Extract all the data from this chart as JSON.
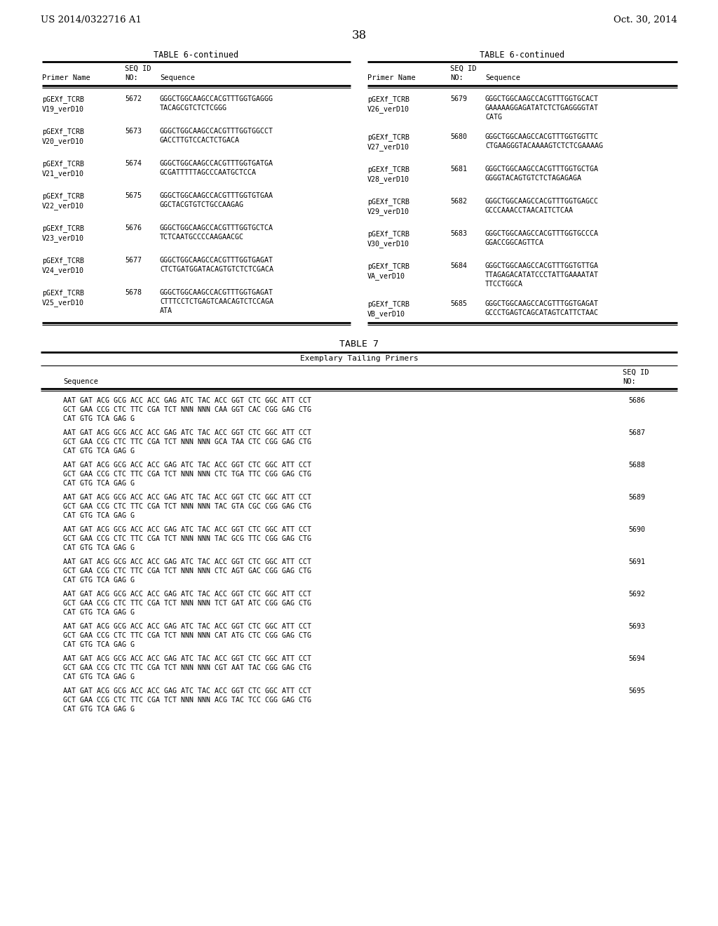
{
  "header_left": "US 2014/0322716 A1",
  "header_right": "Oct. 30, 2014",
  "page_number": "38",
  "bg_color": "#ffffff",
  "text_color": "#000000",
  "table6_title": "TABLE 6-continued",
  "table6_left_rows": [
    {
      "name": "pGEXf_TCRB\nV19_verD10",
      "seqid": "5672",
      "seq": "GGGCTGGCAAGCCACGTTTGGTGAGGG\nTACAGCGTCTCTCGGG"
    },
    {
      "name": "pGEXf_TCRB\nV20_verD10",
      "seqid": "5673",
      "seq": "GGGCTGGCAAGCCACGTTTGGTGGCCT\nGACCTTGTCCACTCTGACA"
    },
    {
      "name": "pGEXf_TCRB\nV21_verD10",
      "seqid": "5674",
      "seq": "GGGCTGGCAAGCCACGTTTGGTGATGA\nGCGATTTTTAGCCCAATGCTCCA"
    },
    {
      "name": "pGEXf_TCRB\nV22_verD10",
      "seqid": "5675",
      "seq": "GGGCTGGCAAGCCACGTTTGGTGTGAA\nGGCTACGTGTCTGCCAAGAG"
    },
    {
      "name": "pGEXf_TCRB\nV23_verD10",
      "seqid": "5676",
      "seq": "GGGCTGGCAAGCCACGTTTGGTGCTCA\nTCTCAATGCCCCAAGAACGC"
    },
    {
      "name": "pGEXf_TCRB\nV24_verD10",
      "seqid": "5677",
      "seq": "GGGCTGGCAAGCCACGTTTGGTGAGAT\nCTCTGATGGATACAGTGTCTCTCGACA"
    },
    {
      "name": "pGEXf_TCRB\nV25_verD10",
      "seqid": "5678",
      "seq": "GGGCTGGCAAGCCACGTTTGGTGAGAT\nCTTTCCTCTGAGTCAACAGTCTCCAGA\nATA"
    }
  ],
  "table6_right_rows": [
    {
      "name": "pGEXf_TCRB\nV26_verD10",
      "seqid": "5679",
      "seq": "GGGCTGGCAAGCCACGTTTGGTGCACT\nGAAAAAGGAGATATCTCTGAGGGGTAT\nCATG"
    },
    {
      "name": "pGEXf_TCRB\nV27_verD10",
      "seqid": "5680",
      "seq": "GGGCTGGCAAGCCACGTTTGGTGGTTC\nCTGAAGGGTACAAAAGTCTCTCGAAAAG"
    },
    {
      "name": "pGEXf_TCRB\nV28_verD10",
      "seqid": "5681",
      "seq": "GGGCTGGCAAGCCACGTTTGGTGCTGA\nGGGGTACAGTGTCTCTAGAGAGA"
    },
    {
      "name": "pGEXf_TCRB\nV29_verD10",
      "seqid": "5682",
      "seq": "GGGCTGGCAAGCCACGTTTGGTGAGCC\nGCCCAAACCTAACAITCTCAA"
    },
    {
      "name": "pGEXf_TCRB\nV30_verD10",
      "seqid": "5683",
      "seq": "GGGCTGGCAAGCCACGTTTGGTGCCCA\nGGACCGGCAGTTCA"
    },
    {
      "name": "pGEXf_TCRB\nVA_verD10",
      "seqid": "5684",
      "seq": "GGGCTGGCAAGCCACGTTTGGTGTTGA\nTTAGAGACATATCCCTATTGAAAATAT\nTTCCTGGCA"
    },
    {
      "name": "pGEXf_TCRB\nVB_verD10",
      "seqid": "5685",
      "seq": "GGGCTGGCAAGCCACGTTTGGTGAGAT\nGCCCTGAGTCAGCATAGTCATTCTAAC"
    }
  ],
  "table7_title": "TABLE 7",
  "table7_subtitle": "Exemplary Tailing Primers",
  "table7_rows": [
    {
      "seq": "AAT GAT ACG GCG ACC ACC GAG ATC TAC ACC GGT CTC GGC ATT CCT\nGCT GAA CCG CTC TTC CGA TCT NNN NNN CAA GGT CAC CGG GAG CTG\nCAT GTG TCA GAG G",
      "seqid": "5686"
    },
    {
      "seq": "AAT GAT ACG GCG ACC ACC GAG ATC TAC ACC GGT CTC GGC ATT CCT\nGCT GAA CCG CTC TTC CGA TCT NNN NNN GCA TAA CTC CGG GAG CTG\nCAT GTG TCA GAG G",
      "seqid": "5687"
    },
    {
      "seq": "AAT GAT ACG GCG ACC ACC GAG ATC TAC ACC GGT CTC GGC ATT CCT\nGCT GAA CCG CTC TTC CGA TCT NNN NNN CTC TGA TTC CGG GAG CTG\nCAT GTG TCA GAG G",
      "seqid": "5688"
    },
    {
      "seq": "AAT GAT ACG GCG ACC ACC GAG ATC TAC ACC GGT CTC GGC ATT CCT\nGCT GAA CCG CTC TTC CGA TCT NNN NNN TAC GTA CGC CGG GAG CTG\nCAT GTG TCA GAG G",
      "seqid": "5689"
    },
    {
      "seq": "AAT GAT ACG GCG ACC ACC GAG ATC TAC ACC GGT CTC GGC ATT CCT\nGCT GAA CCG CTC TTC CGA TCT NNN NNN TAC GCG TTC CGG GAG CTG\nCAT GTG TCA GAG G",
      "seqid": "5690"
    },
    {
      "seq": "AAT GAT ACG GCG ACC ACC GAG ATC TAC ACC GGT CTC GGC ATT CCT\nGCT GAA CCG CTC TTC CGA TCT NNN NNN CTC AGT GAC CGG GAG CTG\nCAT GTG TCA GAG G",
      "seqid": "5691"
    },
    {
      "seq": "AAT GAT ACG GCG ACC ACC GAG ATC TAC ACC GGT CTC GGC ATT CCT\nGCT GAA CCG CTC TTC CGA TCT NNN NNN TCT GAT ATC CGG GAG CTG\nCAT GTG TCA GAG G",
      "seqid": "5692"
    },
    {
      "seq": "AAT GAT ACG GCG ACC ACC GAG ATC TAC ACC GGT CTC GGC ATT CCT\nGCT GAA CCG CTC TTC CGA TCT NNN NNN CAT ATG CTC CGG GAG CTG\nCAT GTG TCA GAG G",
      "seqid": "5693"
    },
    {
      "seq": "AAT GAT ACG GCG ACC ACC GAG ATC TAC ACC GGT CTC GGC ATT CCT\nGCT GAA CCG CTC TTC CGA TCT NNN NNN CGT AAT TAC CGG GAG CTG\nCAT GTG TCA GAG G",
      "seqid": "5694"
    },
    {
      "seq": "AAT GAT ACG GCG ACC ACC GAG ATC TAC ACC GGT CTC GGC ATT CCT\nGCT GAA CCG CTC TTC CGA TCT NNN NNN ACG TAC TCC CGG GAG CTG\nCAT GTG TCA GAG G",
      "seqid": "5695"
    }
  ]
}
